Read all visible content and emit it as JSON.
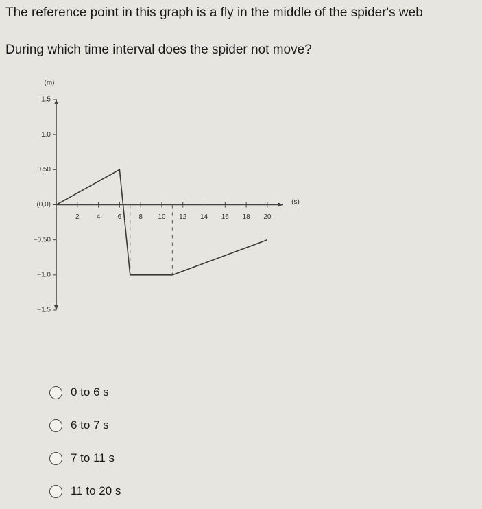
{
  "header": {
    "context": "The reference point in this graph is a fly in the middle of the spider's web",
    "question": "During which time interval does the spider not move?"
  },
  "chart_data": {
    "type": "line",
    "x_label": "(s)",
    "y_label": "(m)",
    "x": [
      0,
      6,
      7,
      11,
      20
    ],
    "series": [
      {
        "values": [
          0,
          0.5,
          -1.0,
          -1.0,
          -0.5
        ],
        "color": "#3a3a3a"
      }
    ],
    "xlim": [
      0,
      21.5
    ],
    "ylim": [
      -1.5,
      1.5
    ],
    "xticks": [
      2,
      4,
      6,
      8,
      10,
      12,
      14,
      16,
      18,
      20
    ],
    "yticks": [
      {
        "value": 1.5,
        "label": "1.5"
      },
      {
        "value": 1,
        "label": "1.0"
      },
      {
        "value": 0.5,
        "label": "0.50"
      },
      {
        "value": 0,
        "label": "(0,0)"
      },
      {
        "value": -0.5,
        "label": "−0.50"
      },
      {
        "value": -1,
        "label": "−1.0"
      },
      {
        "value": -1.5,
        "label": "−1.5"
      }
    ]
  },
  "options": [
    "0 to 6 s",
    "6 to 7 s",
    "7 to 11 s",
    "11 to 20 s"
  ]
}
